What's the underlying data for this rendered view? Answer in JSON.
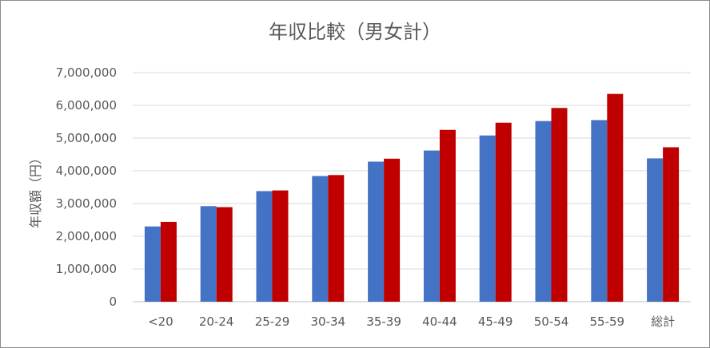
{
  "chart_data": {
    "type": "bar",
    "title": "年収比較（男女計）",
    "ylabel": "年収額（円）",
    "xlabel": "",
    "categories": [
      "<20",
      "20-24",
      "25-29",
      "30-34",
      "35-39",
      "40-44",
      "45-49",
      "50-54",
      "55-59",
      "総計"
    ],
    "series": [
      {
        "color": "#4472c4",
        "values": [
          2300000,
          2920000,
          3380000,
          3840000,
          4280000,
          4620000,
          5080000,
          5520000,
          5550000,
          4380000
        ]
      },
      {
        "color": "#c00000",
        "values": [
          2440000,
          2890000,
          3400000,
          3870000,
          4370000,
          5250000,
          5470000,
          5920000,
          6350000,
          4720000
        ]
      }
    ],
    "ylim": [
      0,
      7000000
    ],
    "yticks": [
      0,
      1000000,
      2000000,
      3000000,
      4000000,
      5000000,
      6000000,
      7000000
    ],
    "ytick_labels": [
      "0",
      "1,000,000",
      "2,000,000",
      "3,000,000",
      "4,000,000",
      "5,000,000",
      "6,000,000",
      "7,000,000"
    ],
    "grid": true,
    "legend": "none"
  }
}
